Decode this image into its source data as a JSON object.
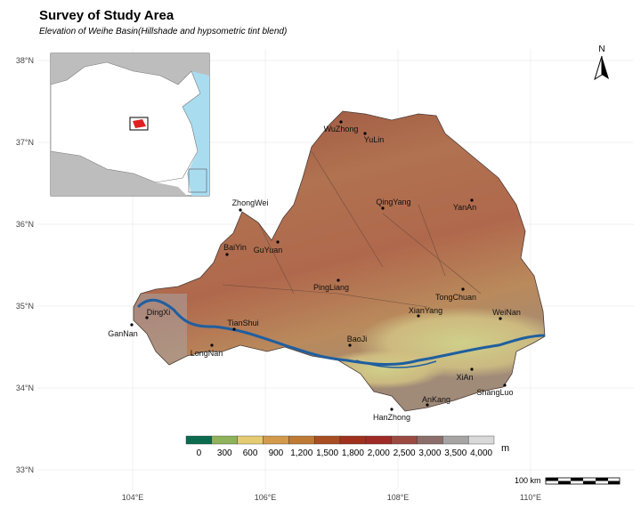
{
  "header": {
    "title": "Survey of Study Area",
    "subtitle": "Elevation of Weihe Basin(Hillshade and hypsometric tint blend)"
  },
  "map": {
    "lat_ticks": [
      {
        "value": 38,
        "label": "38°N"
      },
      {
        "value": 37,
        "label": "37°N"
      },
      {
        "value": 36,
        "label": "36°N"
      },
      {
        "value": 35,
        "label": "35°N"
      },
      {
        "value": 34,
        "label": "34°N"
      },
      {
        "value": 33,
        "label": "33°N"
      }
    ],
    "lon_ticks": [
      {
        "value": 104,
        "label": "104°E"
      },
      {
        "value": 106,
        "label": "106°E"
      },
      {
        "value": 108,
        "label": "108°E"
      },
      {
        "value": 110,
        "label": "110°E"
      }
    ],
    "cities": [
      "WuZhong",
      "YuLin",
      "ZhongWei",
      "BaiYin",
      "GuYuan",
      "QingYang",
      "YanAn",
      "PingLiang",
      "TongChuan",
      "XianYang",
      "WeiNan",
      "DingXi",
      "GanNan",
      "TianShui",
      "LongNan",
      "BaoJi",
      "XiAn",
      "ShangLuo",
      "AnKang",
      "HanZhong"
    ],
    "north": "N",
    "scale_bar": "100 km"
  },
  "legend": {
    "unit": "m",
    "labels": [
      "0",
      "300",
      "600",
      "900",
      "1,200",
      "1,500",
      "1,800",
      "2,000",
      "2,500",
      "3,000",
      "3,500",
      "4,000"
    ],
    "colors": [
      "#0b6b4f",
      "#8fb35a",
      "#e5cc72",
      "#d39a4c",
      "#bf7a35",
      "#a94d22",
      "#a1311c",
      "#a02a25",
      "#9b4a41",
      "#8c6e6b",
      "#a7a4a4",
      "#d9d9d9"
    ]
  }
}
